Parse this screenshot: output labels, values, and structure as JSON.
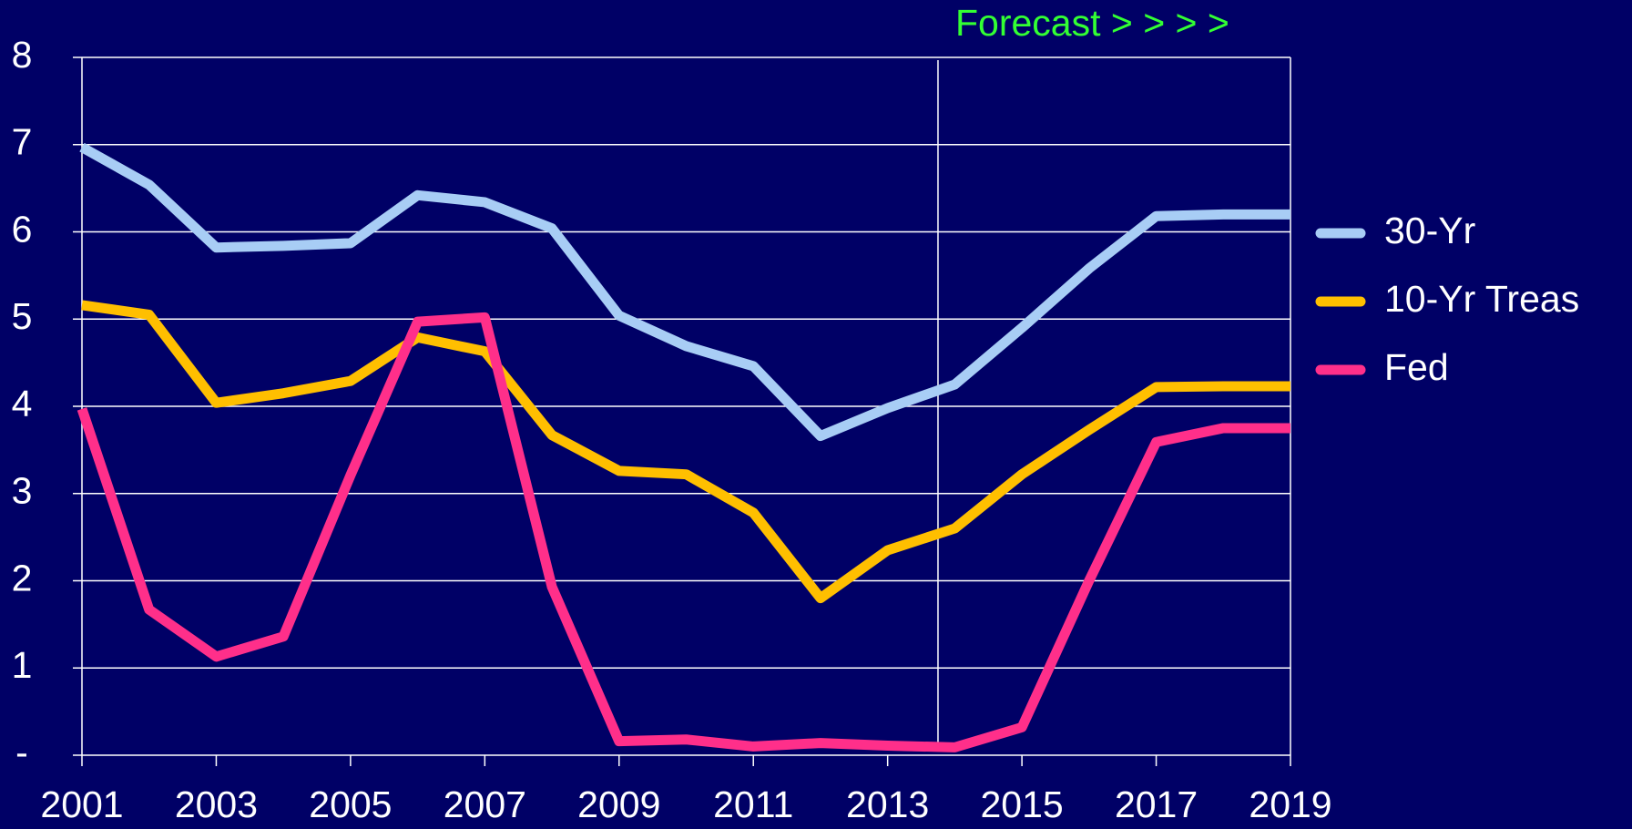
{
  "chart_data": {
    "type": "line",
    "annotation": {
      "text": "Forecast > > > >",
      "x": 2013.75,
      "color": "#33ff33"
    },
    "x": [
      2001,
      2002,
      2003,
      2004,
      2005,
      2006,
      2007,
      2008,
      2009,
      2010,
      2011,
      2012,
      2013,
      2014,
      2015,
      2016,
      2017,
      2018,
      2019
    ],
    "series": [
      {
        "name": "30-Yr",
        "color": "#a8cdf5",
        "values": [
          6.97,
          6.54,
          5.82,
          5.84,
          5.87,
          6.42,
          6.34,
          6.04,
          5.04,
          4.69,
          4.46,
          3.66,
          3.98,
          4.25,
          4.9,
          5.58,
          6.18,
          6.2,
          6.2
        ]
      },
      {
        "name": "10-Yr Treas",
        "color": "#ffbf00",
        "values": [
          5.16,
          5.05,
          4.04,
          4.15,
          4.29,
          4.79,
          4.63,
          3.67,
          3.26,
          3.22,
          2.78,
          1.8,
          2.35,
          2.6,
          3.22,
          3.73,
          4.22,
          4.23,
          4.23
        ]
      },
      {
        "name": "Fed",
        "color": "#ff2f8a",
        "values": [
          3.97,
          1.67,
          1.13,
          1.36,
          3.21,
          4.97,
          5.02,
          1.93,
          0.16,
          0.18,
          0.1,
          0.14,
          0.11,
          0.09,
          0.32,
          2.0,
          3.59,
          3.75,
          3.75
        ]
      }
    ],
    "xlim": [
      2001,
      2019
    ],
    "xticks": [
      2001,
      2003,
      2005,
      2007,
      2009,
      2011,
      2013,
      2015,
      2017,
      2019
    ],
    "ylim": [
      0,
      8
    ],
    "yticks": [
      {
        "value": 0,
        "label": "-"
      },
      1,
      2,
      3,
      4,
      5,
      6,
      7,
      8
    ],
    "grid": true,
    "legend": "right"
  }
}
